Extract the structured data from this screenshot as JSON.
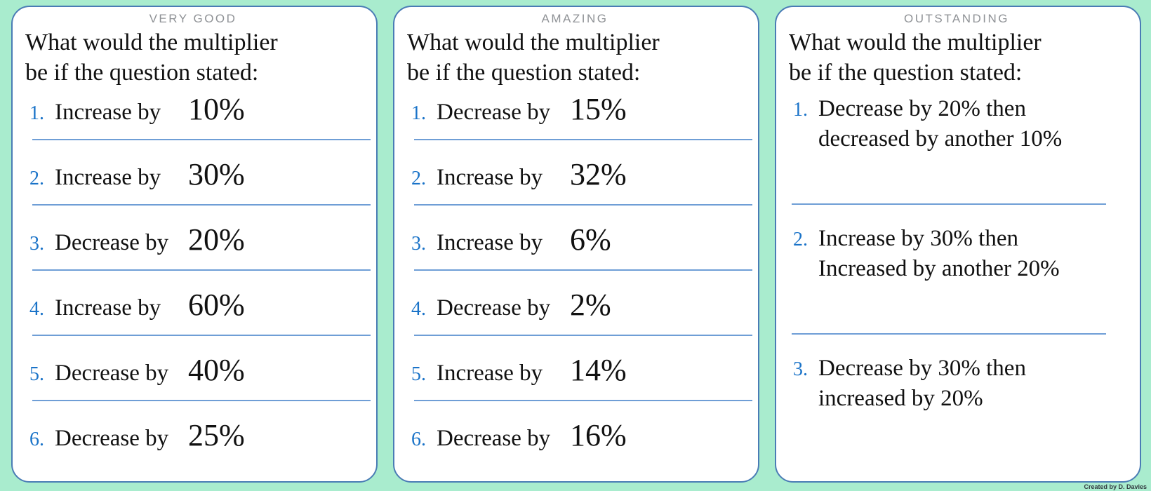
{
  "page": {
    "credit": "Created by D. Davies"
  },
  "theme": {
    "background_color": "#a9ecce",
    "card_background": "#ffffff",
    "card_border_color": "#4a7cb5",
    "separator_color": "#6f9ed6",
    "number_color": "#1a73c8",
    "heading_color": "#8f9296",
    "text_color": "#111111"
  },
  "cards": [
    {
      "heading": "VERY GOOD",
      "question_line1": "What would the multiplier",
      "question_line2": "be if the question stated:",
      "items": [
        {
          "num": "1.",
          "text": "Increase by",
          "value": "10%"
        },
        {
          "num": "2.",
          "text": "Increase by",
          "value": "30%"
        },
        {
          "num": "3.",
          "text": "Decrease by",
          "value": "20%"
        },
        {
          "num": "4.",
          "text": "Increase by",
          "value": "60%"
        },
        {
          "num": "5.",
          "text": "Decrease by",
          "value": "40%"
        },
        {
          "num": "6.",
          "text": "Decrease by",
          "value": "25%"
        }
      ]
    },
    {
      "heading": "AMAZING",
      "question_line1": "What would the multiplier",
      "question_line2": "be if the question stated:",
      "items": [
        {
          "num": "1.",
          "text": "Decrease by",
          "value": "15%"
        },
        {
          "num": "2.",
          "text": "Increase by",
          "value": "32%"
        },
        {
          "num": "3.",
          "text": "Increase by",
          "value": "6%"
        },
        {
          "num": "4.",
          "text": "Decrease by",
          "value": "2%"
        },
        {
          "num": "5.",
          "text": "Increase by",
          "value": "14%"
        },
        {
          "num": "6.",
          "text": "Decrease by",
          "value": "16%"
        }
      ]
    },
    {
      "heading": "OUTSTANDING",
      "question_line1": "What would the multiplier",
      "question_line2": "be if the question stated:",
      "items": [
        {
          "num": "1.",
          "line1": "Decrease by 20% then",
          "line2": "decreased by another 10%"
        },
        {
          "num": "2.",
          "line1": "Increase by 30% then",
          "line2": "Increased by another 20%"
        },
        {
          "num": "3.",
          "line1": "Decrease by 30% then",
          "line2": "increased by 20%"
        }
      ]
    }
  ]
}
